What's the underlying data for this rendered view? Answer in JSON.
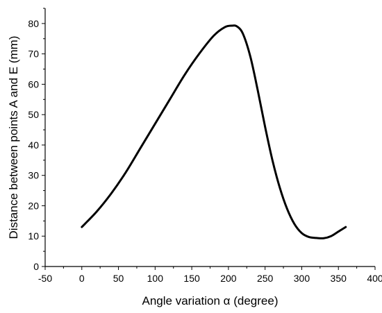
{
  "chart_data": {
    "type": "line",
    "title": "",
    "xlabel": "Angle variation α (degree)",
    "ylabel": "Distance between points A and E (mm)",
    "xlim": [
      -50,
      400
    ],
    "ylim": [
      0,
      85
    ],
    "x_ticks": [
      "-50",
      "0",
      "50",
      "100",
      "150",
      "200",
      "250",
      "300",
      "350",
      "400"
    ],
    "y_ticks": [
      "0",
      "10",
      "20",
      "30",
      "40",
      "50",
      "60",
      "70",
      "80"
    ],
    "grid": false,
    "legend": "none",
    "series": [
      {
        "color": "#000000",
        "x": [
          0,
          20,
          40,
          60,
          80,
          100,
          120,
          140,
          160,
          180,
          195,
          205,
          212,
          220,
          230,
          240,
          250,
          260,
          270,
          280,
          290,
          300,
          310,
          320,
          330,
          340,
          350,
          360
        ],
        "y": [
          13,
          18,
          24,
          31,
          39,
          47,
          55,
          63,
          70,
          76,
          78.8,
          79.3,
          79,
          76.5,
          69,
          58,
          46,
          35,
          26,
          19,
          14,
          11,
          9.7,
          9.4,
          9.3,
          10,
          11.5,
          13
        ]
      }
    ]
  }
}
